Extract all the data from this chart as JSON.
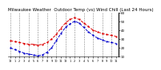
{
  "title": "Milwaukee Weather  Outdoor Temp (vs) Wind Chill (Last 24 Hours)",
  "outdoor_temp": [
    28,
    27,
    26,
    25,
    24,
    24,
    23,
    24,
    26,
    30,
    35,
    42,
    48,
    52,
    54,
    52,
    48,
    44,
    40,
    38,
    36,
    35,
    34,
    33
  ],
  "wind_chill": [
    20,
    18,
    16,
    14,
    13,
    12,
    11,
    12,
    15,
    20,
    28,
    36,
    43,
    47,
    50,
    48,
    43,
    38,
    34,
    31,
    29,
    27,
    26,
    25
  ],
  "x_labels": [
    "12",
    "1",
    "2",
    "3",
    "4",
    "5",
    "6",
    "7",
    "8",
    "9",
    "10",
    "11",
    "12",
    "1",
    "2",
    "3",
    "4",
    "5",
    "6",
    "7",
    "8",
    "9",
    "10",
    "11"
  ],
  "temp_color": "#dd0000",
  "chill_color": "#0000cc",
  "background": "#ffffff",
  "ylim": [
    10,
    60
  ],
  "ytick_values": [
    10,
    20,
    30,
    40,
    50,
    60
  ],
  "ytick_labels": [
    "10",
    "20",
    "30",
    "40",
    "50",
    "60"
  ],
  "grid_color": "#666666",
  "title_fontsize": 4.0,
  "grid_positions": [
    0,
    2,
    4,
    6,
    8,
    10,
    12,
    14,
    16,
    18,
    20,
    22
  ]
}
